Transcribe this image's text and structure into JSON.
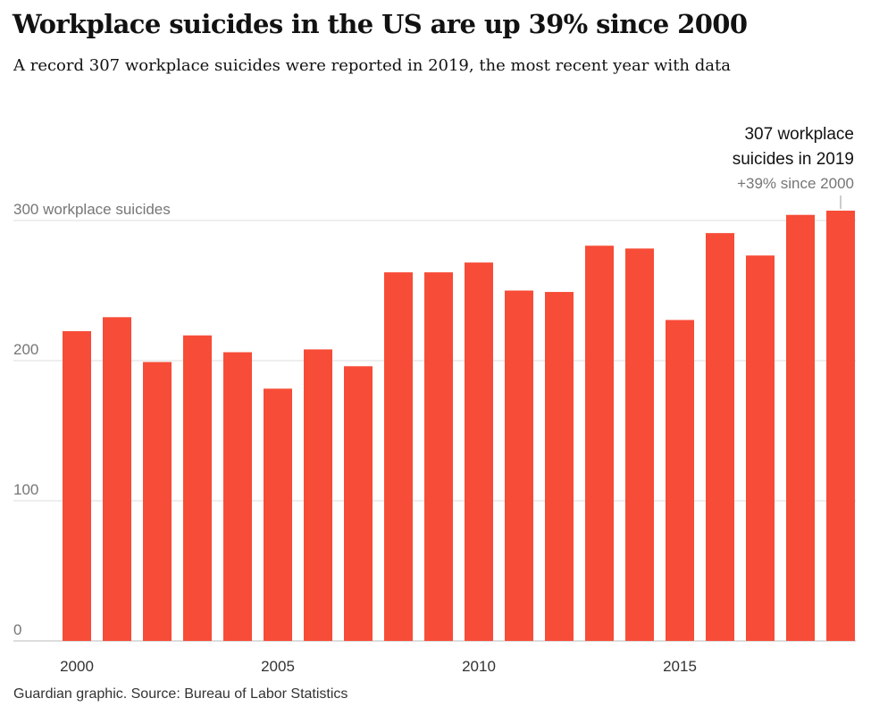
{
  "title": "Workplace suicides in the US are up 39% since 2000",
  "subtitle": "A record 307 workplace suicides were reported in 2019, the most recent year with data",
  "source": "Guardian graphic. Source: Bureau of Labor Statistics",
  "colors": {
    "bar": "#f74c37",
    "grid": "#dcdcdc",
    "axis": "#bbbbbb"
  },
  "chart_data": {
    "type": "bar",
    "x": [
      2000,
      2001,
      2002,
      2003,
      2004,
      2005,
      2006,
      2007,
      2008,
      2009,
      2010,
      2011,
      2012,
      2013,
      2014,
      2015,
      2016,
      2017,
      2018,
      2019
    ],
    "values": [
      221,
      231,
      199,
      218,
      206,
      180,
      208,
      196,
      263,
      263,
      270,
      250,
      249,
      282,
      280,
      229,
      291,
      275,
      304,
      307
    ],
    "ylim": [
      0,
      300
    ],
    "yticks": [
      {
        "value": 300,
        "label": "300 workplace suicides"
      },
      {
        "value": 200,
        "label": "200"
      },
      {
        "value": 100,
        "label": "100"
      },
      {
        "value": 0,
        "label": "0"
      }
    ],
    "xticks": [
      {
        "value": 2000,
        "label": "2000"
      },
      {
        "value": 2005,
        "label": "2005"
      },
      {
        "value": 2010,
        "label": "2010"
      },
      {
        "value": 2015,
        "label": "2015"
      }
    ],
    "grid": true,
    "annotation": {
      "x": 2019,
      "lines": [
        "307 workplace",
        "suicides in 2019"
      ],
      "sub": "+39% since 2000"
    }
  }
}
